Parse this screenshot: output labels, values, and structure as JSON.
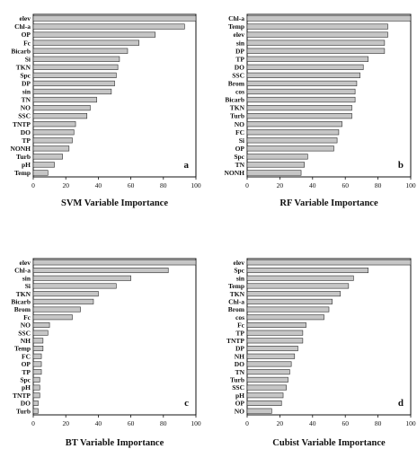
{
  "chart_data": [
    {
      "type": "bar",
      "title": "SVM Variable Importance",
      "panel_label": "a",
      "xlim": [
        0,
        100
      ],
      "xticks": [
        "0",
        "20",
        "40",
        "60",
        "80",
        "100"
      ],
      "grid": false,
      "categories": [
        "elev",
        "Chl-a",
        "OP",
        "Fc",
        "Bicarb",
        "Si",
        "TKN",
        "Spc",
        "DP",
        "sin",
        "TN",
        "NO",
        "SSC",
        "TNTP",
        "DO",
        "TP",
        "NONH",
        "Turb",
        "pH",
        "Temp"
      ],
      "values": [
        100,
        93,
        75,
        65,
        58,
        53,
        52,
        51,
        50,
        48,
        39,
        35,
        33,
        26,
        25,
        24,
        22,
        18,
        13,
        9
      ]
    },
    {
      "type": "bar",
      "title": "RF Variable Importance",
      "panel_label": "b",
      "xlim": [
        0,
        100
      ],
      "xticks": [
        "0",
        "20",
        "40",
        "60",
        "80",
        "100"
      ],
      "grid": false,
      "categories": [
        "Chl-a",
        "Temp",
        "elev",
        "sin",
        "DP",
        "TP",
        "DO",
        "SSC",
        "Brom",
        "cos",
        "Bicarb",
        "TKN",
        "Turb",
        "NO",
        "FC",
        "Si",
        "OP",
        "Spc",
        "TN",
        "NONH"
      ],
      "values": [
        100,
        86,
        86,
        84,
        84,
        74,
        71,
        69,
        67,
        66,
        66,
        64,
        64,
        58,
        56,
        55,
        53,
        37,
        35,
        33
      ]
    },
    {
      "type": "bar",
      "title": "BT Variable Importance",
      "panel_label": "c",
      "xlim": [
        0,
        100
      ],
      "xticks": [
        "0",
        "20",
        "40",
        "60",
        "80",
        "100"
      ],
      "grid": false,
      "categories": [
        "elev",
        "Chl-a",
        "sin",
        "Si",
        "TKN",
        "Bicarb",
        "Brom",
        "Fc",
        "NO",
        "SSC",
        "NH",
        "Temp",
        "FC",
        "OP",
        "TP",
        "Spc",
        "pH",
        "TNTP",
        "DO",
        "Turb"
      ],
      "values": [
        100,
        83,
        60,
        51,
        40,
        37,
        29,
        24,
        10,
        9,
        6,
        6,
        5,
        5,
        5,
        4,
        4,
        4,
        3,
        3
      ]
    },
    {
      "type": "bar",
      "title": "Cubist Variable Importance",
      "panel_label": "d",
      "xlim": [
        0,
        100
      ],
      "xticks": [
        "0",
        "20",
        "40",
        "60",
        "80",
        "100"
      ],
      "grid": false,
      "categories": [
        "elev",
        "Spc",
        "sin",
        "Temp",
        "TKN",
        "Chl-a",
        "Brom",
        "cos",
        "Fc",
        "TP",
        "TNTP",
        "DP",
        "NH",
        "DO",
        "TN",
        "Turb",
        "SSC",
        "pH",
        "OP",
        "NO"
      ],
      "values": [
        100,
        74,
        65,
        62,
        57,
        52,
        50,
        47,
        36,
        34,
        34,
        31,
        29,
        27,
        26,
        25,
        24,
        22,
        21,
        15
      ]
    }
  ],
  "style": {
    "bar_fill": "#c6c6c6",
    "bar_stroke": "#2b2b2b",
    "axis_color": "#111111"
  }
}
